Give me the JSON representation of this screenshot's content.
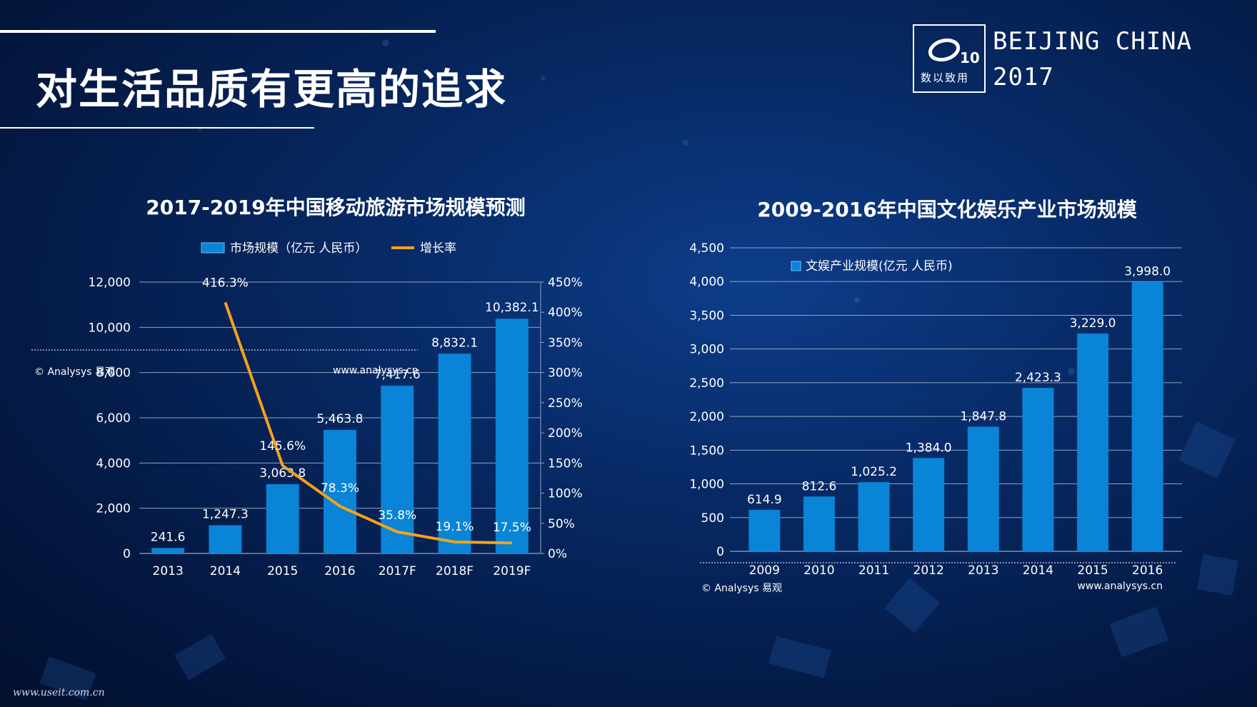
{
  "page": {
    "title": "对生活品质有更高的追求",
    "brand_line1": "BEIJING CHINA",
    "brand_line2": "2017",
    "logo_text": "数以致用",
    "logo_mark": "10",
    "footer": "www.useit.com.cn"
  },
  "chart_data": [
    {
      "type": "bar",
      "title": "2017-2019年中国移动旅游市场规模预测",
      "categories": [
        "2013",
        "2014",
        "2015",
        "2016",
        "2017F",
        "2018F",
        "2019F"
      ],
      "series": [
        {
          "name": "市场规模（亿元 人民币）",
          "values": [
            241.6,
            1247.3,
            3063.8,
            5463.8,
            7417.6,
            8832.1,
            10382.1
          ],
          "labels": [
            "241.6",
            "1,247.3",
            "3,063.8",
            "5,463.8",
            "7,417.6",
            "8,832.1",
            "10,382.1"
          ],
          "axis": "left",
          "color": "#0a84d6"
        },
        {
          "name": "增长率",
          "type": "line",
          "values": [
            null,
            416.3,
            145.6,
            78.3,
            35.8,
            19.1,
            17.5
          ],
          "labels": [
            "",
            "416.3%",
            "145.6%",
            "78.3%",
            "35.8%",
            "19.1%",
            "17.5%"
          ],
          "axis": "right",
          "color": "#f3a21d"
        }
      ],
      "ylim": [
        0,
        12000
      ],
      "yticks": [
        0,
        2000,
        4000,
        6000,
        8000,
        10000,
        12000
      ],
      "ytick_labels": [
        "0",
        "2,000",
        "4,000",
        "6,000",
        "8,000",
        "10,000",
        "12,000"
      ],
      "y2lim": [
        0,
        450
      ],
      "y2ticks": [
        0,
        50,
        100,
        150,
        200,
        250,
        300,
        350,
        400,
        450
      ],
      "y2tick_labels": [
        "0%",
        "50%",
        "100%",
        "150%",
        "200%",
        "250%",
        "300%",
        "350%",
        "400%",
        "450%"
      ],
      "grid": true,
      "legend": "top-center",
      "source_left": "© Analysys 易观",
      "source_right": "www.analysys.cn"
    },
    {
      "type": "bar",
      "title": "2009-2016年中国文化娱乐产业市场规模",
      "categories": [
        "2009",
        "2010",
        "2011",
        "2012",
        "2013",
        "2014",
        "2015",
        "2016"
      ],
      "series": [
        {
          "name": "文娱产业规模(亿元 人民币)",
          "values": [
            614.9,
            812.6,
            1025.2,
            1384.0,
            1847.8,
            2423.3,
            3229.0,
            3998.0
          ],
          "labels": [
            "614.9",
            "812.6",
            "1,025.2",
            "1,384.0",
            "1,847.8",
            "2,423.3",
            "3,229.0",
            "3,998.0"
          ],
          "color": "#0a84d6"
        }
      ],
      "ylim": [
        0,
        4500
      ],
      "yticks": [
        0,
        500,
        1000,
        1500,
        2000,
        2500,
        3000,
        3500,
        4000,
        4500
      ],
      "ytick_labels": [
        "0",
        "500",
        "1,000",
        "1,500",
        "2,000",
        "2,500",
        "3,000",
        "3,500",
        "4,000",
        "4,500"
      ],
      "grid": true,
      "legend": "top-left",
      "source_left": "© Analysys 易观",
      "source_right": "www.analysys.cn"
    }
  ]
}
